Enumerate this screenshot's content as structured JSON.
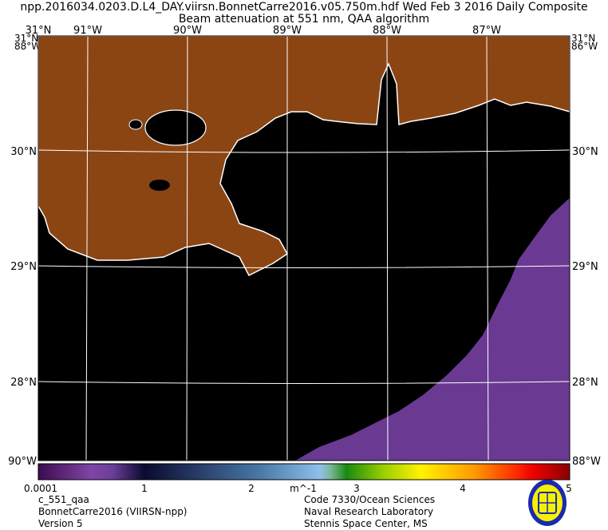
{
  "header": {
    "title_line1": "npp.2016034.0203.D.L4_DAY.viirsn.BonnetCarre2016.v05.750m.hdf     Wed Feb  3 2016 Daily Composite",
    "title_line2": "Beam attenuation at 551 nm, QAA algorithm"
  },
  "map": {
    "top_left_lat": "31°N",
    "lon_labels": [
      "91°W",
      "90°W",
      "89°W",
      "88°W",
      "87°W"
    ],
    "lat_labels": [
      "30°N",
      "29°N",
      "28°N"
    ],
    "corner_labels": {
      "top_left": "31°N 88°W",
      "top_right": "31°N 86°W",
      "bottom_left": "90°W",
      "bottom_right": "88°W"
    },
    "colors": {
      "land": "#8b4513",
      "no_data": "#000000",
      "coastline": "#ffffff",
      "grid": "#ffffff",
      "low_value": "#6a3a92"
    }
  },
  "colorbar": {
    "tick_labels": [
      "0.0001",
      "1",
      "2",
      "3",
      "4",
      "5"
    ],
    "unit": "m^-1",
    "range": [
      0.0001,
      5
    ]
  },
  "footer": {
    "left": [
      "c_551_qaa",
      "BonnetCarre2016 (VIIRSN-npp)",
      "Version 5"
    ],
    "right": [
      "Code 7330/Ocean Sciences",
      "Naval Research Laboratory",
      "Stennis Space Center, MS"
    ],
    "logo_text": "Naval Research Laboratory"
  }
}
